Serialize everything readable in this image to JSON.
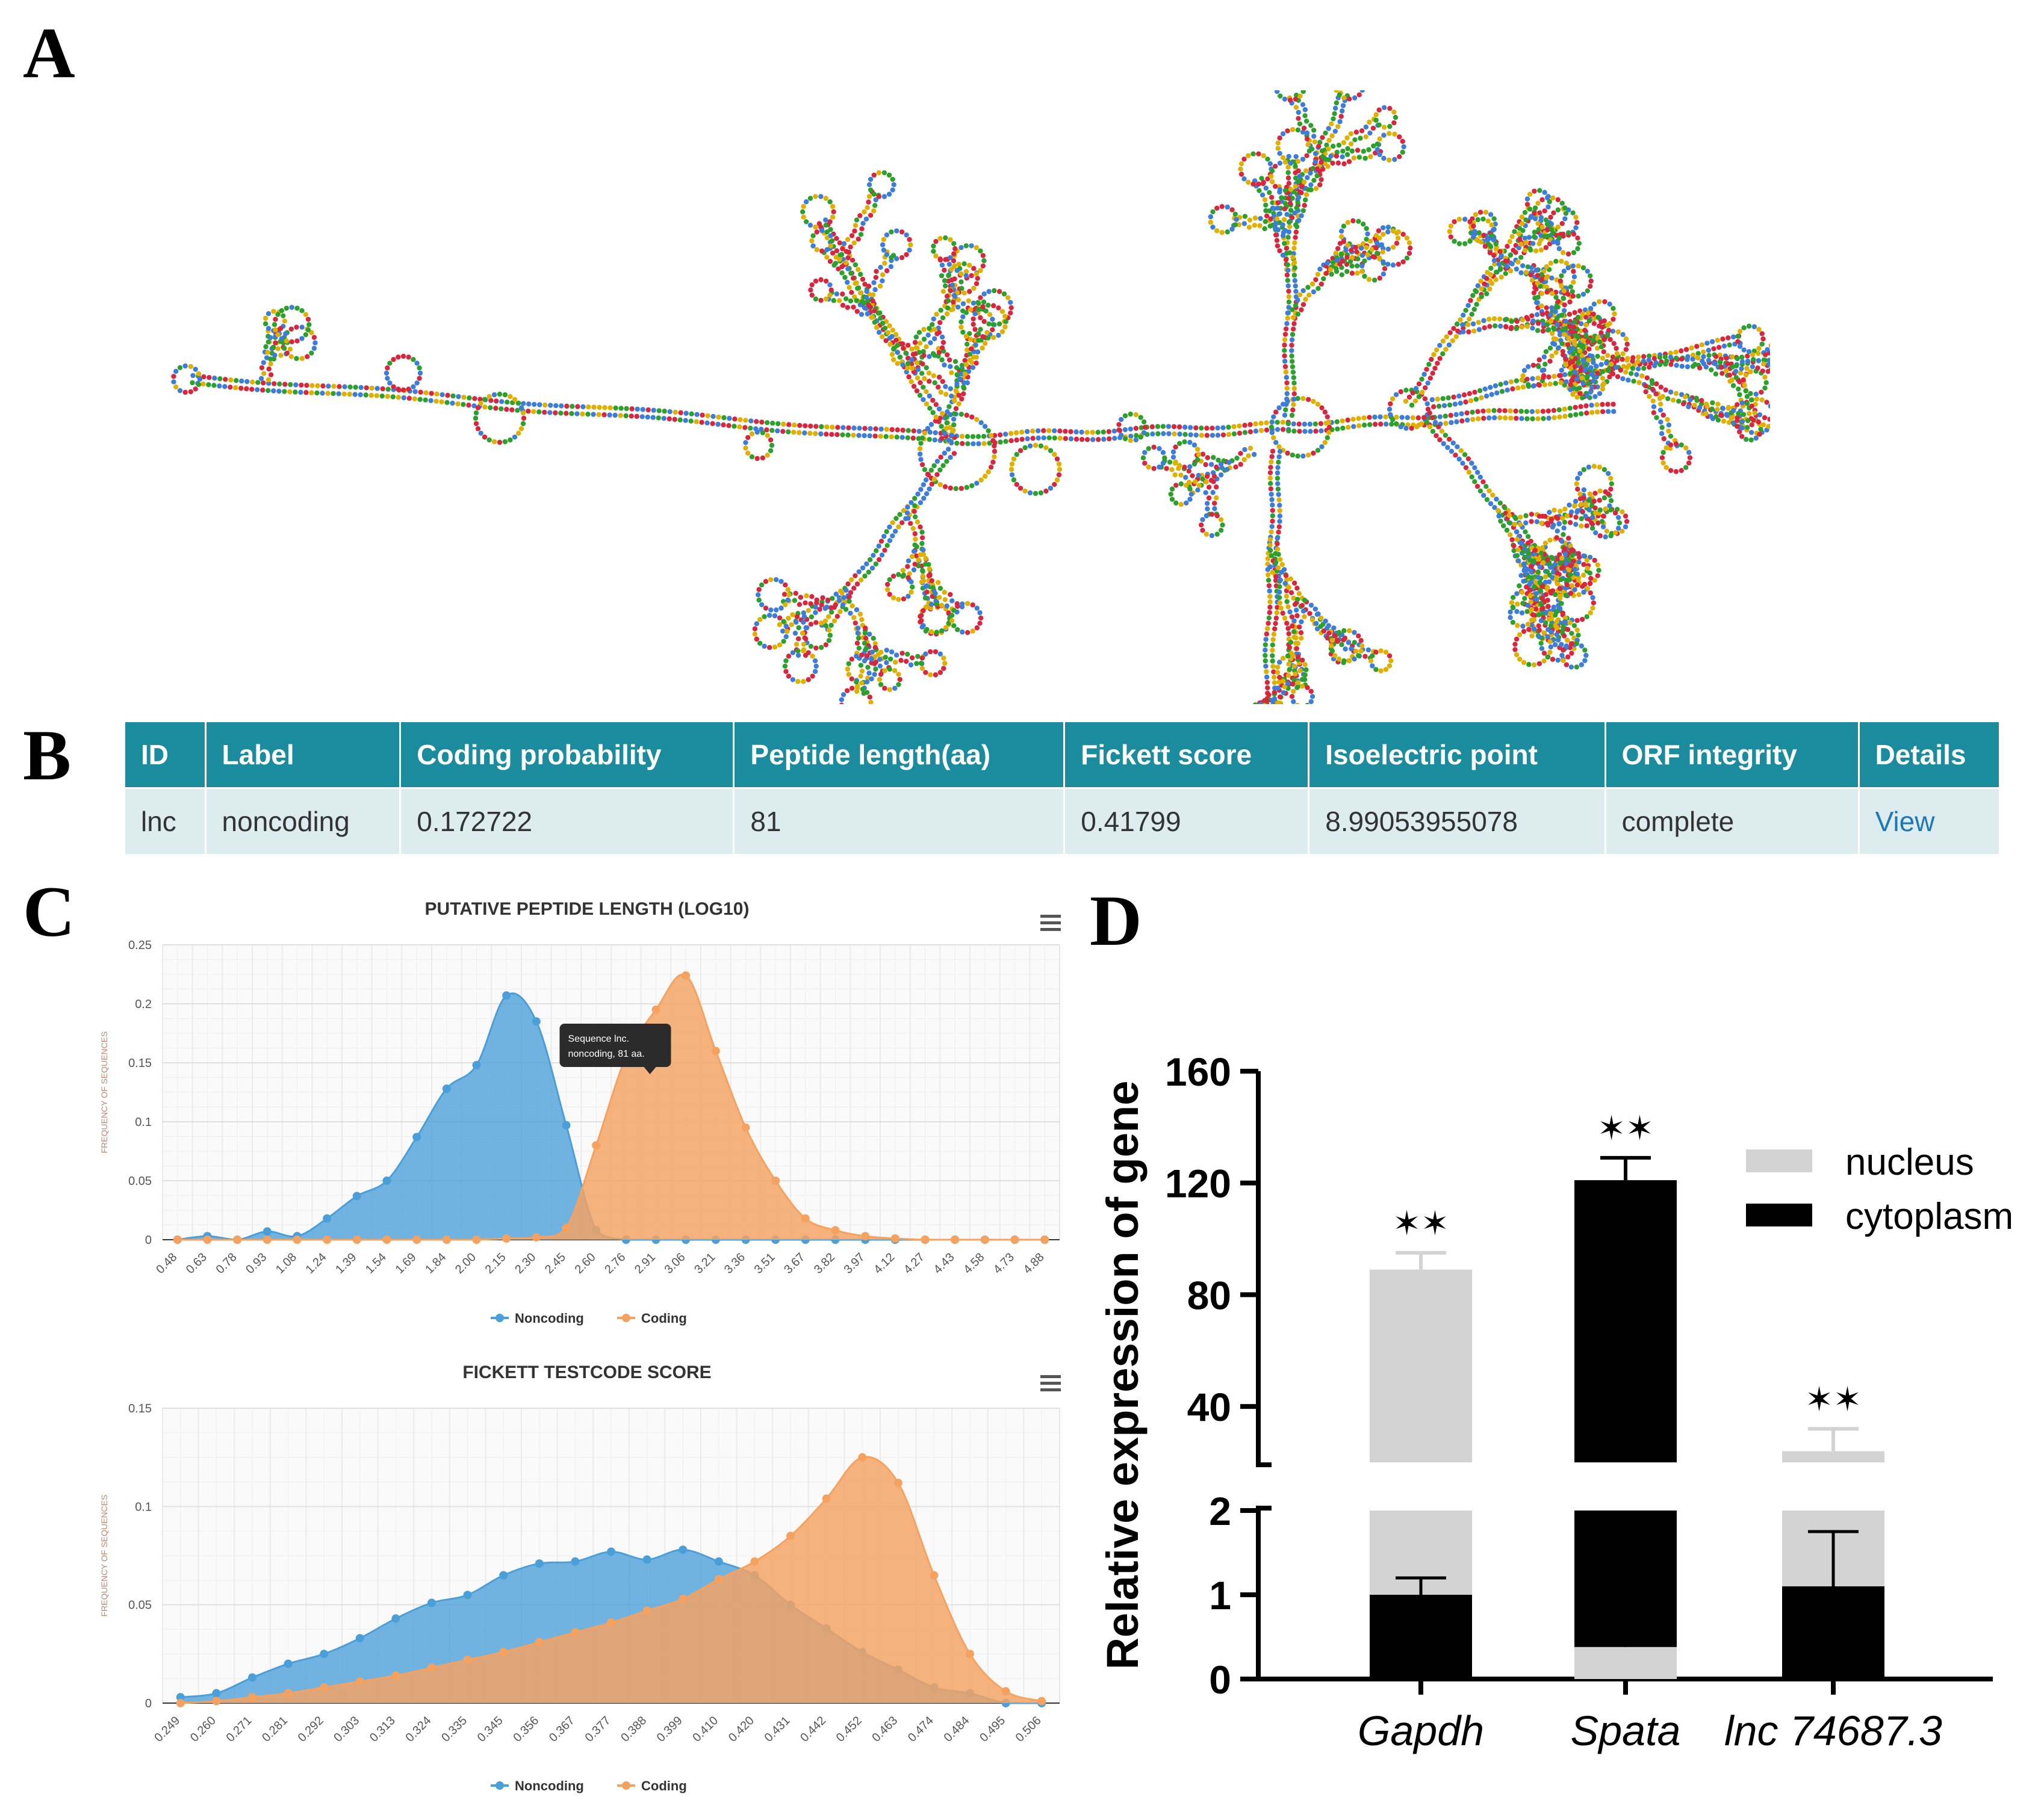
{
  "panels": {
    "a": "A",
    "b": "B",
    "c": "C",
    "d": "D"
  },
  "table": {
    "headers": [
      "ID",
      "Label",
      "Coding probability",
      "Peptide length(aa)",
      "Fickett score",
      "Isoelectric point",
      "ORF integrity",
      "Details"
    ],
    "row": [
      "lnc",
      "noncoding",
      "0.172722",
      "81",
      "0.41799",
      "8.99053955078",
      "complete",
      "View"
    ]
  },
  "colors": {
    "header": "#1a8c9e",
    "noncoding": "#4a9fd8",
    "coding": "#f5a260",
    "link": "#1f78b4"
  },
  "chart_data": [
    {
      "type": "area",
      "title": "PUTATIVE PEPTIDE LENGTH (LOG10)",
      "ylabel": "FREQUENCY OF SEQUENCES",
      "xlabel": "",
      "ylim": [
        0,
        0.25
      ],
      "yticks": [
        "0",
        "0.05",
        "0.1",
        "0.15",
        "0.2",
        "0.25"
      ],
      "x": [
        "0.48",
        "0.63",
        "0.78",
        "0.93",
        "1.08",
        "1.24",
        "1.39",
        "1.54",
        "1.69",
        "1.84",
        "2.00",
        "2.15",
        "2.30",
        "2.45",
        "2.60",
        "2.76",
        "2.91",
        "3.06",
        "3.21",
        "3.36",
        "3.51",
        "3.67",
        "3.82",
        "3.97",
        "4.12",
        "4.27",
        "4.43",
        "4.58",
        "4.73",
        "4.88"
      ],
      "series": [
        {
          "name": "Noncoding",
          "values": [
            0,
            0.003,
            0,
            0.007,
            0.003,
            0.018,
            0.037,
            0.05,
            0.087,
            0.128,
            0.148,
            0.207,
            0.185,
            0.097,
            0.008,
            0,
            0,
            0,
            0,
            0,
            0,
            0,
            0,
            0,
            0,
            0,
            0,
            0,
            0,
            0
          ]
        },
        {
          "name": "Coding",
          "values": [
            0,
            0,
            0,
            0,
            0,
            0,
            0,
            0,
            0,
            0,
            0,
            0.001,
            0.002,
            0.01,
            0.08,
            0.155,
            0.195,
            0.224,
            0.16,
            0.095,
            0.05,
            0.018,
            0.008,
            0.003,
            0.001,
            0,
            0,
            0,
            0,
            0
          ]
        }
      ],
      "legend": "bottom-center",
      "tooltip": {
        "line1": "Sequence lnc.",
        "line2": "noncoding, 81 aa."
      }
    },
    {
      "type": "area",
      "title": "FICKETT TESTCODE SCORE",
      "ylabel": "FREQUENCY OF SEQUENCES",
      "xlabel": "",
      "ylim": [
        0,
        0.15
      ],
      "yticks": [
        "0",
        "0.05",
        "0.1",
        "0.15"
      ],
      "x": [
        "0.249",
        "0.260",
        "0.271",
        "0.281",
        "0.292",
        "0.303",
        "0.313",
        "0.324",
        "0.335",
        "0.345",
        "0.356",
        "0.367",
        "0.377",
        "0.388",
        "0.399",
        "0.410",
        "0.420",
        "0.431",
        "0.442",
        "0.452",
        "0.463",
        "0.474",
        "0.484",
        "0.495",
        "0.506"
      ],
      "series": [
        {
          "name": "Noncoding",
          "values": [
            0.003,
            0.005,
            0.013,
            0.02,
            0.025,
            0.033,
            0.043,
            0.051,
            0.055,
            0.065,
            0.071,
            0.072,
            0.077,
            0.073,
            0.078,
            0.072,
            0.065,
            0.05,
            0.038,
            0.026,
            0.017,
            0.008,
            0.005,
            0,
            0
          ]
        },
        {
          "name": "Coding",
          "values": [
            0,
            0.001,
            0.003,
            0.005,
            0.008,
            0.011,
            0.014,
            0.018,
            0.022,
            0.026,
            0.031,
            0.036,
            0.041,
            0.047,
            0.053,
            0.063,
            0.072,
            0.085,
            0.104,
            0.125,
            0.112,
            0.065,
            0.025,
            0.006,
            0.001
          ]
        }
      ],
      "legend": "bottom-center"
    },
    {
      "type": "bar",
      "title": "",
      "ylabel": "Relative expression of gene",
      "xlabel": "",
      "categories": [
        "Gapdh",
        "Spata",
        "lnc 74687.3"
      ],
      "series": [
        {
          "name": "nucleus",
          "values": [
            89,
            0.38,
            24
          ],
          "errors": [
            6,
            0.62,
            8
          ]
        },
        {
          "name": "cytoplasm",
          "values": [
            1,
            121,
            1.1
          ],
          "errors": [
            0.2,
            8,
            0.65
          ]
        }
      ],
      "top_segment": "nucleus,cytoplasm,nucleus",
      "axis_break": {
        "lower_range": [
          0,
          2
        ],
        "upper_range": [
          20,
          160
        ]
      },
      "yticks_upper": [
        "40",
        "80",
        "120",
        "160"
      ],
      "yticks_lower": [
        "0",
        "1",
        "2"
      ],
      "significance": [
        "**",
        "**",
        "**"
      ],
      "legend": "top-right"
    }
  ]
}
